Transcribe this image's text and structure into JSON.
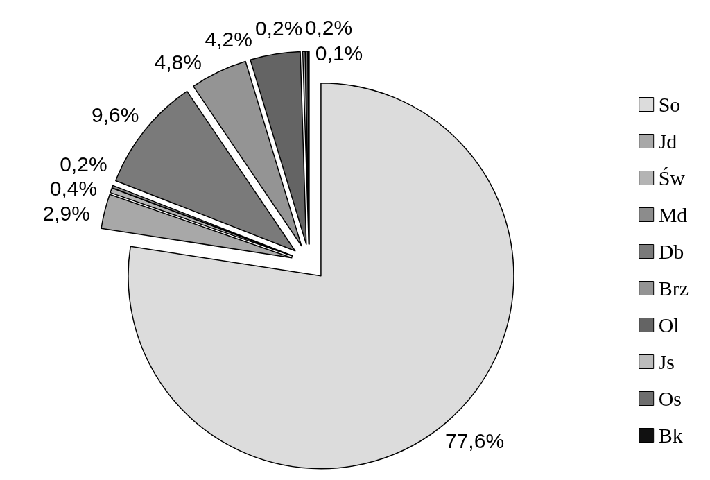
{
  "chart_data": {
    "type": "pie",
    "categories": [
      "So",
      "Jd",
      "Św",
      "Md",
      "Db",
      "Brz",
      "Ol",
      "Js",
      "Os",
      "Bk"
    ],
    "values": [
      77.6,
      2.9,
      0.4,
      0.2,
      9.6,
      4.8,
      4.2,
      0.2,
      0.2,
      0.1
    ],
    "value_labels": [
      "77,6%",
      "2,9%",
      "0,4%",
      "0,2%",
      "9,6%",
      "4,8%",
      "4,2%",
      "0,2%",
      "0,2%",
      "0,1%"
    ],
    "colors": [
      "#dcdcdc",
      "#a8a8a8",
      "#b4b4b4",
      "#8c8c8c",
      "#7a7a7a",
      "#949494",
      "#646464",
      "#bcbcbc",
      "#6e6e6e",
      "#111111"
    ],
    "legend": "right"
  }
}
